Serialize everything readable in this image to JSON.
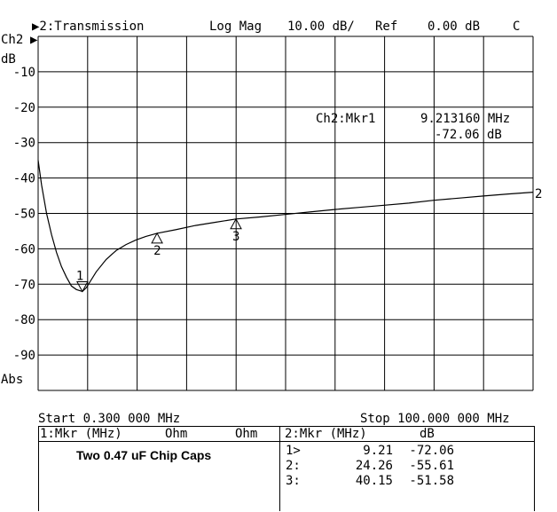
{
  "header": {
    "channel_selector": "▶2:Transmission",
    "format": "Log Mag",
    "scale": "10.00 dB/",
    "ref_label": "Ref",
    "ref_value": "0.00 dB",
    "flag": "C"
  },
  "left_labels": {
    "channel": "Ch2",
    "unit": "dB",
    "bottom": "Abs"
  },
  "marker_readout": {
    "label": "Ch2:Mkr1",
    "frequency": "9.213160 MHz",
    "value": "-72.06 dB"
  },
  "trace_label": "2",
  "footer": {
    "start": "Start 0.300 000 MHz",
    "stop": "Stop 100.000 000 MHz"
  },
  "table": {
    "left_header": {
      "title": "1:Mkr (MHz)",
      "col2": "Ohm",
      "col3": "Ohm"
    },
    "right_header": {
      "title": "2:Mkr (MHz)",
      "col2": "dB"
    },
    "rows": [
      {
        "id": "1>",
        "freq": "9.21",
        "db": "-72.06"
      },
      {
        "id": "2:",
        "freq": "24.26",
        "db": "-55.61"
      },
      {
        "id": "3:",
        "freq": "40.15",
        "db": "-51.58"
      }
    ],
    "note": "Two 0.47 uF Chip Caps"
  },
  "chart_data": {
    "type": "line",
    "xlabel": "",
    "ylabel": "dB",
    "xlim": [
      0.3,
      100
    ],
    "ylim": [
      -100,
      0
    ],
    "yticks": [
      "-10",
      "-20",
      "-30",
      "-40",
      "-50",
      "-60",
      "-70",
      "-80",
      "-90"
    ],
    "grid": true,
    "series": [
      {
        "name": "2",
        "x": [
          0.3,
          1,
          2,
          3,
          4,
          5,
          6,
          7,
          8,
          9.21,
          10,
          12,
          14,
          16,
          18,
          20,
          22,
          24.26,
          28,
          32,
          36,
          40.15,
          45,
          50,
          55,
          60,
          65,
          70,
          75,
          80,
          85,
          90,
          95,
          100
        ],
        "y": [
          -35,
          -42,
          -50,
          -56,
          -61,
          -65,
          -68,
          -70.5,
          -71.5,
          -72.06,
          -71,
          -66.5,
          -63,
          -60.5,
          -58.8,
          -57.5,
          -56.5,
          -55.61,
          -54.6,
          -53.4,
          -52.5,
          -51.58,
          -51,
          -50.3,
          -49.6,
          -48.9,
          -48.3,
          -47.7,
          -47.1,
          -46.3,
          -45.7,
          -45.1,
          -44.5,
          -44
        ]
      }
    ],
    "markers": [
      {
        "label": "1",
        "x": 9.21,
        "y": -72.06
      },
      {
        "label": "2",
        "x": 24.26,
        "y": -55.61
      },
      {
        "label": "3",
        "x": 40.15,
        "y": -51.58
      }
    ]
  }
}
